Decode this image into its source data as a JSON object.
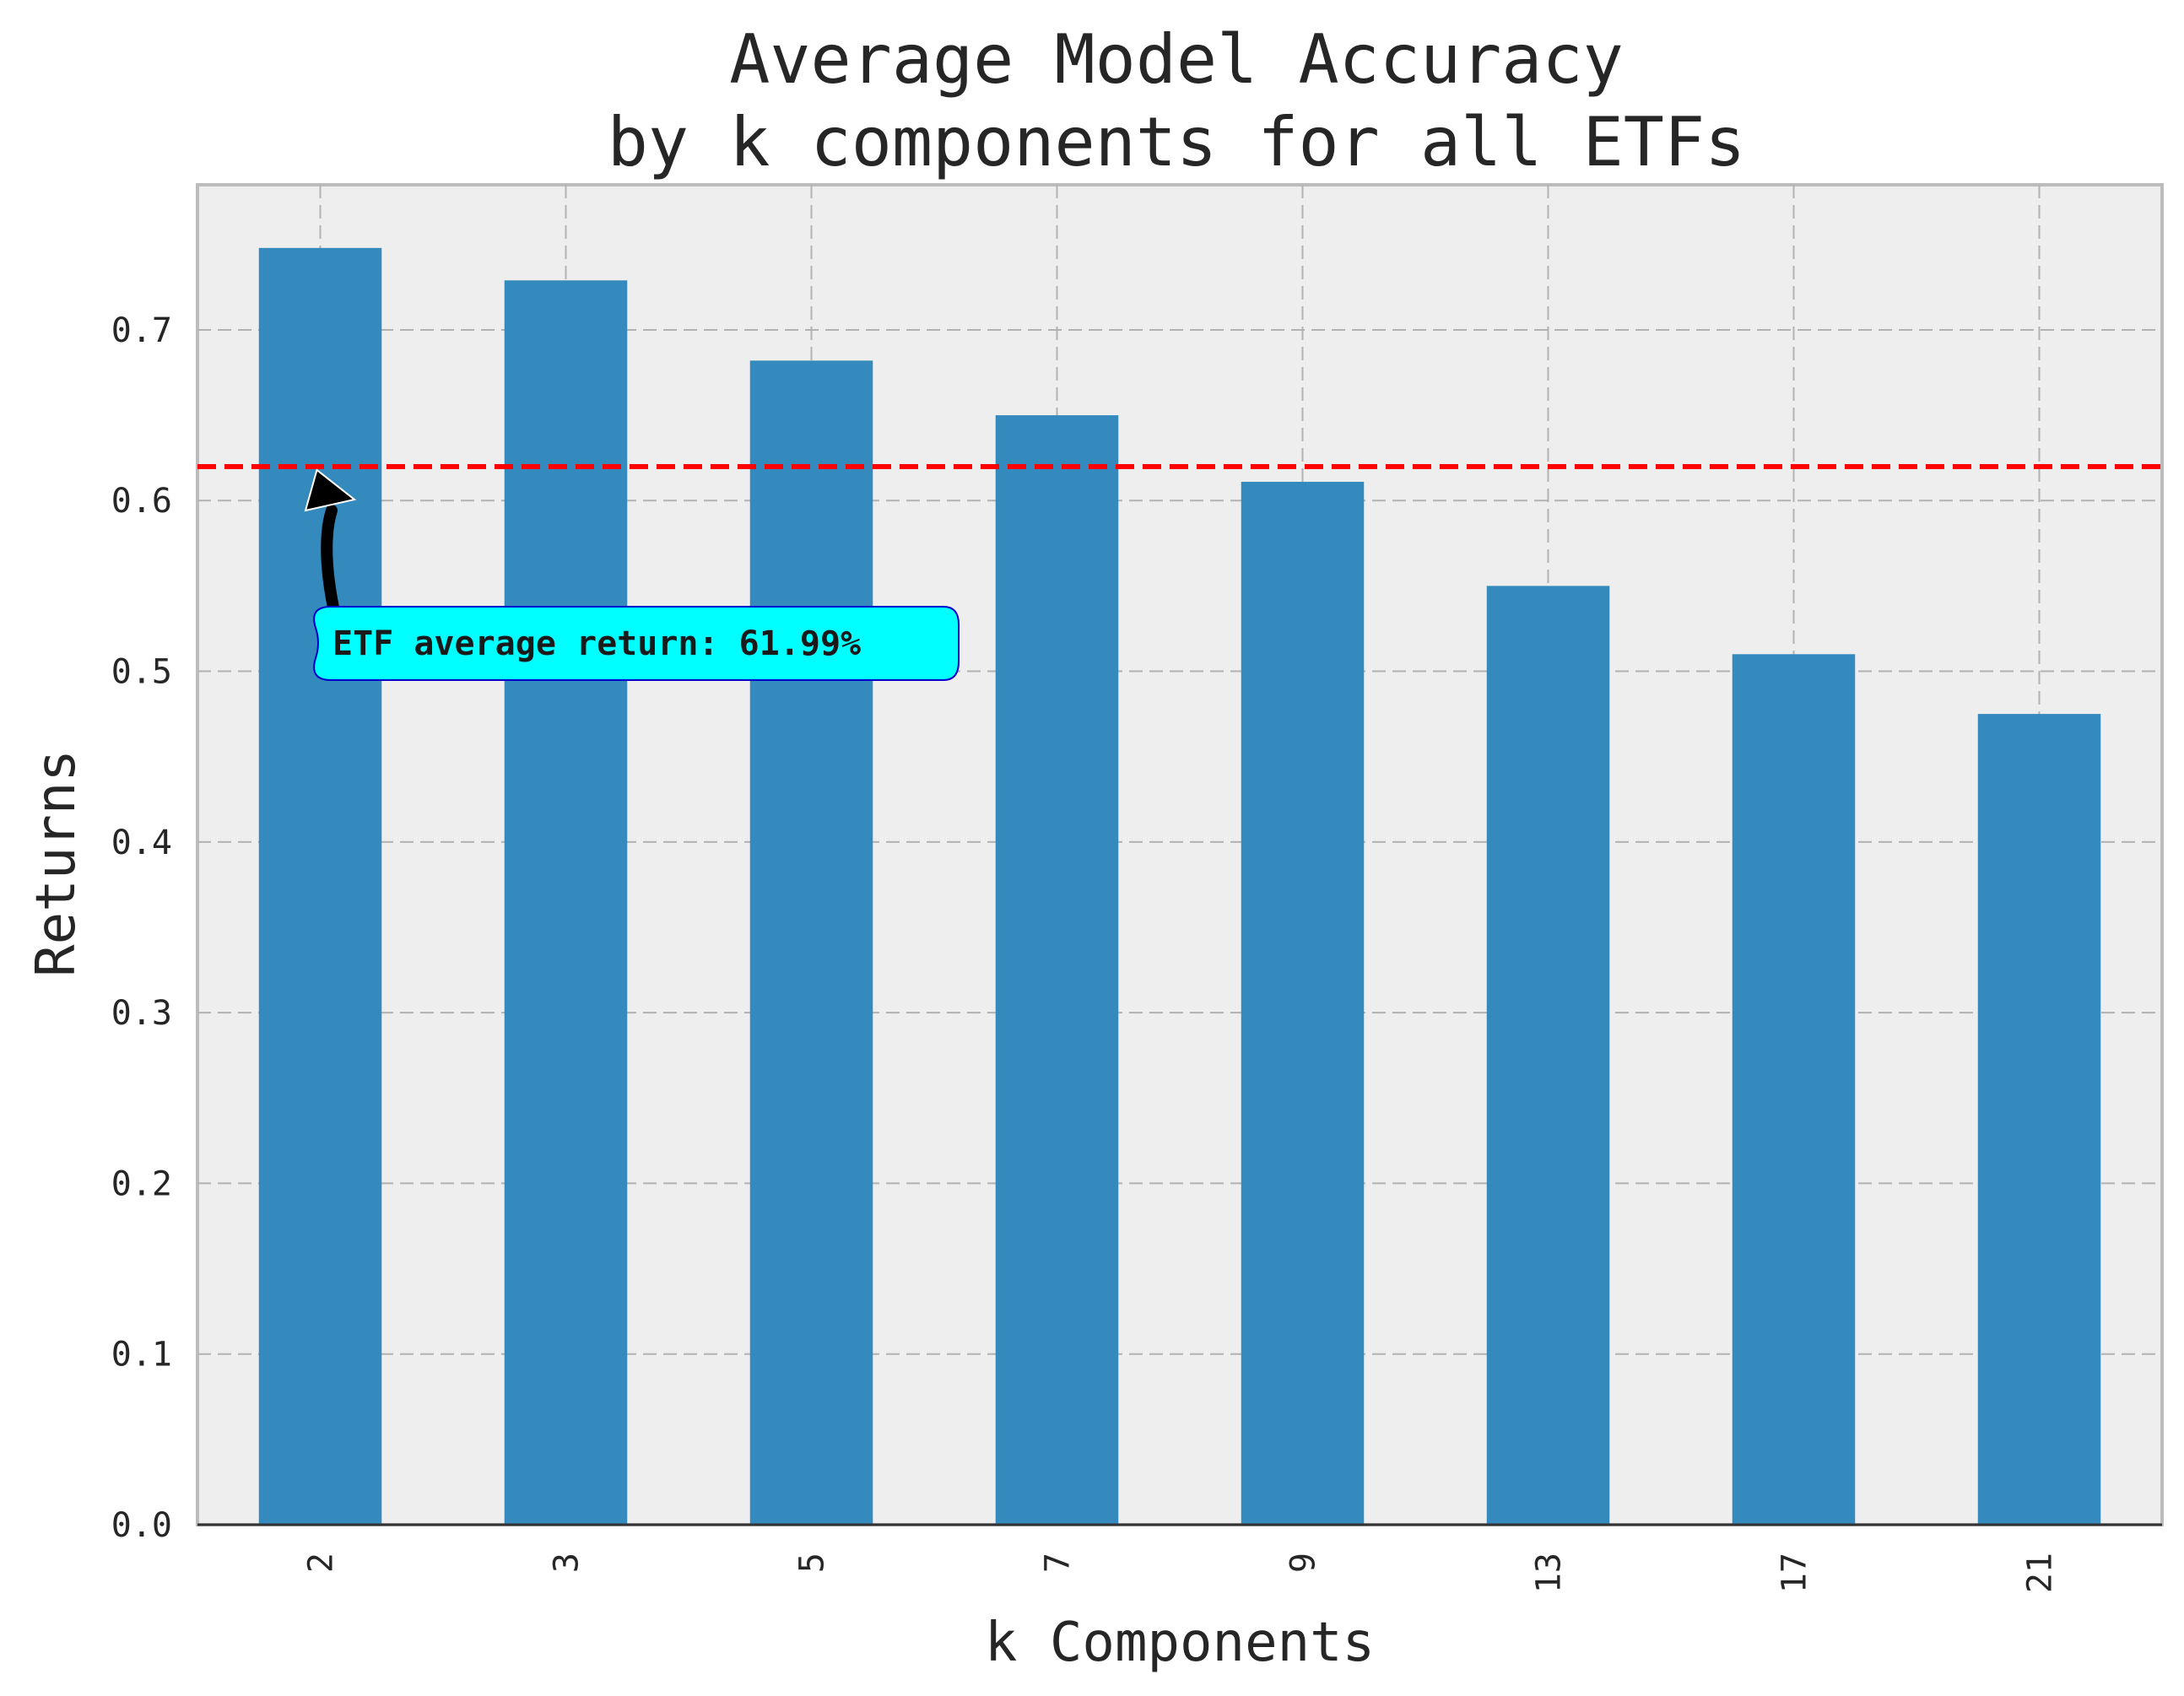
{
  "chart_data": {
    "type": "bar",
    "title_lines": [
      "Average Model Accuracy",
      "by k components for all ETFs"
    ],
    "xlabel": "k Components",
    "ylabel": "Returns",
    "categories": [
      "2",
      "3",
      "5",
      "7",
      "9",
      "13",
      "17",
      "21"
    ],
    "values": [
      0.748,
      0.729,
      0.682,
      0.65,
      0.611,
      0.55,
      0.51,
      0.475
    ],
    "ylim": [
      0,
      0.785
    ],
    "yticks": [
      0.0,
      0.1,
      0.2,
      0.3,
      0.4,
      0.5,
      0.6,
      0.7
    ],
    "ytick_labels": [
      "0.0",
      "0.1",
      "0.2",
      "0.3",
      "0.4",
      "0.5",
      "0.6",
      "0.7"
    ],
    "grid": true,
    "bar_color": "#348abd",
    "reference_line": {
      "value": 0.6199,
      "color": "#ff0000",
      "style": "dashed"
    },
    "annotation": {
      "text": "ETF average return: 61.99%",
      "points_to_category": "2",
      "points_to_value": 0.6199,
      "box_color": "#00ffff",
      "edge_color": "#0000cc"
    }
  }
}
